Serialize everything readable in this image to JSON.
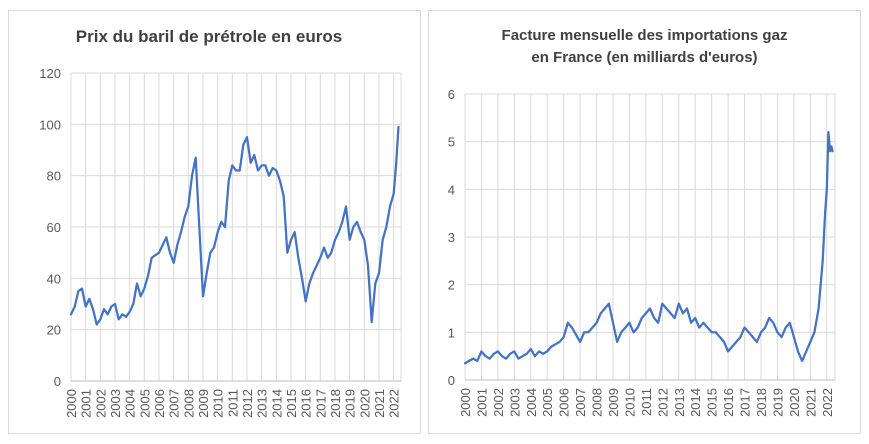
{
  "chart_data": [
    {
      "type": "line",
      "title": "Prix du baril de prétrole en euros",
      "xlabel": "",
      "ylabel": "",
      "ylim": [
        0,
        120
      ],
      "yticks": [
        0,
        20,
        40,
        60,
        80,
        100,
        120
      ],
      "xticks": [
        "2000",
        "2001",
        "2002",
        "2003",
        "2004",
        "2005",
        "2006",
        "2007",
        "2008",
        "2009",
        "2010",
        "2011",
        "2012",
        "2013",
        "2014",
        "2015",
        "2016",
        "2017",
        "2018",
        "2019",
        "2020",
        "2021",
        "2022"
      ],
      "grid": true,
      "color": "#4472C4",
      "x": [
        2000.0,
        2000.25,
        2000.5,
        2000.75,
        2001.0,
        2001.25,
        2001.5,
        2001.75,
        2002.0,
        2002.25,
        2002.5,
        2002.75,
        2003.0,
        2003.25,
        2003.5,
        2003.75,
        2004.0,
        2004.25,
        2004.5,
        2004.75,
        2005.0,
        2005.25,
        2005.5,
        2005.75,
        2006.0,
        2006.25,
        2006.5,
        2006.75,
        2007.0,
        2007.25,
        2007.5,
        2007.75,
        2008.0,
        2008.25,
        2008.5,
        2008.75,
        2009.0,
        2009.25,
        2009.5,
        2009.75,
        2010.0,
        2010.25,
        2010.5,
        2010.75,
        2011.0,
        2011.25,
        2011.5,
        2011.75,
        2012.0,
        2012.25,
        2012.5,
        2012.75,
        2013.0,
        2013.25,
        2013.5,
        2013.75,
        2014.0,
        2014.25,
        2014.5,
        2014.75,
        2015.0,
        2015.25,
        2015.5,
        2015.75,
        2016.0,
        2016.25,
        2016.5,
        2016.75,
        2017.0,
        2017.25,
        2017.5,
        2017.75,
        2018.0,
        2018.25,
        2018.5,
        2018.75,
        2019.0,
        2019.25,
        2019.5,
        2019.75,
        2020.0,
        2020.25,
        2020.5,
        2020.75,
        2021.0,
        2021.25,
        2021.5,
        2021.75,
        2022.0,
        2022.17,
        2022.33
      ],
      "values": [
        26,
        29,
        35,
        36,
        29,
        32,
        28,
        22,
        24,
        28,
        26,
        29,
        30,
        24,
        26,
        25,
        27,
        30,
        38,
        33,
        36,
        41,
        48,
        49,
        50,
        53,
        56,
        50,
        46,
        53,
        58,
        64,
        68,
        80,
        87,
        60,
        33,
        42,
        50,
        52,
        58,
        62,
        60,
        78,
        84,
        82,
        82,
        92,
        95,
        85,
        88,
        82,
        84,
        84,
        80,
        83,
        82,
        78,
        72,
        50,
        55,
        58,
        48,
        40,
        31,
        38,
        42,
        45,
        48,
        52,
        48,
        50,
        55,
        58,
        62,
        68,
        55,
        60,
        62,
        58,
        55,
        45,
        23,
        38,
        42,
        55,
        60,
        68,
        73,
        85,
        99
      ]
    },
    {
      "type": "line",
      "title_lines": [
        "Facture mensuelle des importations gaz",
        "en France (en milliards d'euros)"
      ],
      "xlabel": "",
      "ylabel": "",
      "ylim": [
        0,
        6
      ],
      "yticks": [
        0,
        1,
        2,
        3,
        4,
        5,
        6
      ],
      "xticks": [
        "2000",
        "2001",
        "2002",
        "2003",
        "2004",
        "2005",
        "2006",
        "2007",
        "2008",
        "2009",
        "2010",
        "2011",
        "2012",
        "2013",
        "2014",
        "2015",
        "2016",
        "2017",
        "2018",
        "2019",
        "2020",
        "2021",
        "2022"
      ],
      "grid": true,
      "color": "#4472C4",
      "x": [
        2000.0,
        2000.25,
        2000.5,
        2000.75,
        2001.0,
        2001.25,
        2001.5,
        2001.75,
        2002.0,
        2002.25,
        2002.5,
        2002.75,
        2003.0,
        2003.25,
        2003.5,
        2003.75,
        2004.0,
        2004.25,
        2004.5,
        2004.75,
        2005.0,
        2005.25,
        2005.5,
        2005.75,
        2006.0,
        2006.25,
        2006.5,
        2006.75,
        2007.0,
        2007.25,
        2007.5,
        2007.75,
        2008.0,
        2008.25,
        2008.5,
        2008.75,
        2009.0,
        2009.25,
        2009.5,
        2009.75,
        2010.0,
        2010.25,
        2010.5,
        2010.75,
        2011.0,
        2011.25,
        2011.5,
        2011.75,
        2012.0,
        2012.25,
        2012.5,
        2012.75,
        2013.0,
        2013.25,
        2013.5,
        2013.75,
        2014.0,
        2014.25,
        2014.5,
        2014.75,
        2015.0,
        2015.25,
        2015.5,
        2015.75,
        2016.0,
        2016.25,
        2016.5,
        2016.75,
        2017.0,
        2017.25,
        2017.5,
        2017.75,
        2018.0,
        2018.25,
        2018.5,
        2018.75,
        2019.0,
        2019.25,
        2019.5,
        2019.75,
        2020.0,
        2020.25,
        2020.5,
        2020.75,
        2021.0,
        2021.25,
        2021.5,
        2021.75,
        2021.9,
        2022.0,
        2022.1,
        2022.2,
        2022.28,
        2022.35
      ],
      "values": [
        0.35,
        0.4,
        0.45,
        0.4,
        0.6,
        0.5,
        0.45,
        0.55,
        0.6,
        0.5,
        0.45,
        0.55,
        0.6,
        0.45,
        0.5,
        0.55,
        0.65,
        0.5,
        0.6,
        0.55,
        0.6,
        0.7,
        0.75,
        0.8,
        0.9,
        1.2,
        1.1,
        0.95,
        0.8,
        1.0,
        1.0,
        1.1,
        1.2,
        1.4,
        1.5,
        1.6,
        1.2,
        0.8,
        1.0,
        1.1,
        1.2,
        1.0,
        1.1,
        1.3,
        1.4,
        1.5,
        1.3,
        1.2,
        1.6,
        1.5,
        1.4,
        1.3,
        1.6,
        1.4,
        1.5,
        1.2,
        1.3,
        1.1,
        1.2,
        1.1,
        1.0,
        1.0,
        0.9,
        0.8,
        0.6,
        0.7,
        0.8,
        0.9,
        1.1,
        1.0,
        0.9,
        0.8,
        1.0,
        1.1,
        1.3,
        1.2,
        1.0,
        0.9,
        1.1,
        1.2,
        0.9,
        0.6,
        0.4,
        0.6,
        0.8,
        1.0,
        1.5,
        2.5,
        3.5,
        4.0,
        5.2,
        4.8,
        4.9,
        4.8
      ]
    }
  ]
}
